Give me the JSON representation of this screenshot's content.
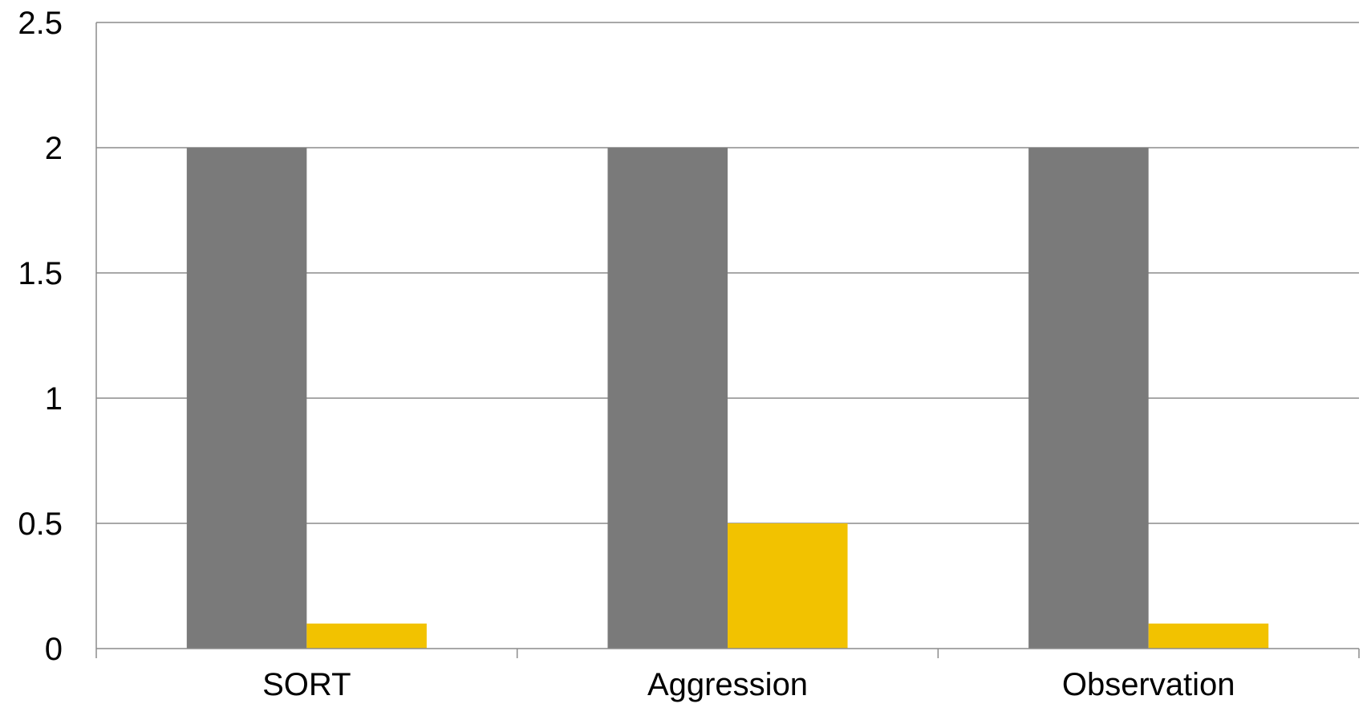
{
  "chart_data": {
    "type": "bar",
    "title": "",
    "xlabel": "",
    "ylabel": "",
    "categories": [
      "SORT",
      "Aggression",
      "Observation"
    ],
    "series": [
      {
        "values": [
          2,
          2,
          2
        ],
        "color": "#7a7a7a"
      },
      {
        "values": [
          0.1,
          0.5,
          0.1
        ],
        "color": "#f2c200"
      }
    ],
    "ylim": [
      0,
      2.5
    ],
    "yticks": [
      "0",
      "0.5",
      "1",
      "1.5",
      "2",
      "2.5"
    ],
    "grid": true,
    "legend": "none"
  }
}
